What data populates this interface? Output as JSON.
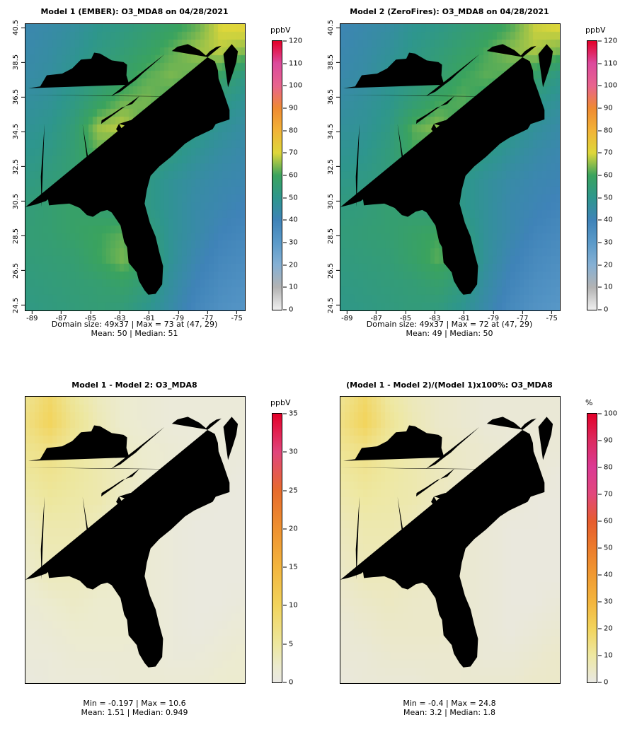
{
  "figure": {
    "background": "#ffffff"
  },
  "chart_data": [
    {
      "type": "heatmap",
      "title": "Model 1 (EMBER): O3_MDA8 on 04/28/2021",
      "units": "ppbV",
      "domain_size": "49x37",
      "native_grid": [
        49,
        37
      ],
      "caption_line1": "Domain size: 49x37 | Max = 73 at (47, 29)",
      "caption_line2": "Mean: 50 |  Median: 51",
      "stats": {
        "mean": 50,
        "median": 51,
        "max": 73,
        "max_at": [
          47,
          29
        ]
      },
      "axis": {
        "lon_range": [
          -89.5,
          -74.5
        ],
        "lat_range": [
          24.25,
          40.75
        ],
        "lon_ticks": [
          -89,
          -87,
          -85,
          -83,
          -81,
          -79,
          -77,
          -75
        ],
        "lat_ticks": [
          24.5,
          26.5,
          28.5,
          30.5,
          32.5,
          34.5,
          36.5,
          38.5,
          40.5
        ]
      },
      "colorbar": {
        "min": 0,
        "max": 120,
        "ticks": [
          0,
          10,
          20,
          30,
          40,
          50,
          60,
          70,
          80,
          90,
          100,
          110,
          120
        ],
        "stops": [
          [
            0,
            "#efefef"
          ],
          [
            10,
            "#b3b3b3"
          ],
          [
            20,
            "#85b0d4"
          ],
          [
            30,
            "#5b9ac9"
          ],
          [
            40,
            "#3f83b8"
          ],
          [
            50,
            "#2e968d"
          ],
          [
            60,
            "#3aa35e"
          ],
          [
            70,
            "#ded73a"
          ],
          [
            80,
            "#f2b337"
          ],
          [
            90,
            "#ef8a32"
          ],
          [
            100,
            "#e8648e"
          ],
          [
            110,
            "#dc4a9d"
          ],
          [
            120,
            "#e40028"
          ]
        ]
      },
      "grid": [
        [
          42,
          44,
          46,
          50,
          52,
          55,
          58,
          62,
          70,
          72
        ],
        [
          43,
          45,
          48,
          52,
          55,
          58,
          62,
          66,
          68,
          65
        ],
        [
          44,
          46,
          50,
          54,
          58,
          62,
          64,
          62,
          58,
          52
        ],
        [
          46,
          48,
          52,
          58,
          63,
          64,
          60,
          56,
          52,
          48
        ],
        [
          48,
          50,
          55,
          66,
          68,
          60,
          56,
          52,
          48,
          45
        ],
        [
          50,
          52,
          56,
          62,
          60,
          56,
          52,
          48,
          45,
          43
        ],
        [
          52,
          54,
          56,
          58,
          56,
          52,
          48,
          45,
          43,
          42
        ],
        [
          54,
          56,
          58,
          56,
          54,
          52,
          48,
          44,
          42,
          40
        ],
        [
          55,
          56,
          58,
          60,
          62,
          55,
          48,
          44,
          40,
          38
        ],
        [
          54,
          55,
          56,
          60,
          64,
          58,
          48,
          42,
          38,
          36
        ],
        [
          53,
          54,
          55,
          56,
          58,
          54,
          46,
          40,
          36,
          34
        ],
        [
          52,
          53,
          54,
          55,
          54,
          50,
          44,
          38,
          34,
          32
        ]
      ]
    },
    {
      "type": "heatmap",
      "title": "Model 2 (ZeroFires): O3_MDA8 on 04/28/2021",
      "units": "ppbV",
      "domain_size": "49x37",
      "native_grid": [
        49,
        37
      ],
      "caption_line1": "Domain size: 49x37 | Max = 72 at (47, 29)",
      "caption_line2": "Mean: 49 |  Median: 50",
      "stats": {
        "mean": 49,
        "median": 50,
        "max": 72,
        "max_at": [
          47,
          29
        ]
      },
      "axis": {
        "lon_range": [
          -89.5,
          -74.5
        ],
        "lat_range": [
          24.25,
          40.75
        ],
        "lon_ticks": [
          -89,
          -87,
          -85,
          -83,
          -81,
          -79,
          -77,
          -75
        ],
        "lat_ticks": [
          24.5,
          26.5,
          28.5,
          30.5,
          32.5,
          34.5,
          36.5,
          38.5,
          40.5
        ]
      },
      "colorbar": {
        "min": 0,
        "max": 120,
        "ticks": [
          0,
          10,
          20,
          30,
          40,
          50,
          60,
          70,
          80,
          90,
          100,
          110,
          120
        ],
        "stops": [
          [
            0,
            "#efefef"
          ],
          [
            10,
            "#b3b3b3"
          ],
          [
            20,
            "#85b0d4"
          ],
          [
            30,
            "#5b9ac9"
          ],
          [
            40,
            "#3f83b8"
          ],
          [
            50,
            "#2e968d"
          ],
          [
            60,
            "#3aa35e"
          ],
          [
            70,
            "#ded73a"
          ],
          [
            80,
            "#f2b337"
          ],
          [
            90,
            "#ef8a32"
          ],
          [
            100,
            "#e8648e"
          ],
          [
            110,
            "#dc4a9d"
          ],
          [
            120,
            "#e40028"
          ]
        ]
      },
      "grid": [
        [
          41,
          43,
          45,
          49,
          51,
          54,
          57,
          61,
          69,
          71
        ],
        [
          42,
          44,
          47,
          51,
          54,
          57,
          61,
          65,
          67,
          64
        ],
        [
          43,
          45,
          49,
          52,
          56,
          60,
          62,
          61,
          57,
          51
        ],
        [
          45,
          47,
          50,
          55,
          60,
          62,
          58,
          55,
          51,
          47
        ],
        [
          47,
          48,
          52,
          62,
          65,
          58,
          55,
          51,
          47,
          44
        ],
        [
          49,
          50,
          54,
          60,
          58,
          55,
          51,
          47,
          44,
          42
        ],
        [
          51,
          52,
          54,
          56,
          55,
          51,
          47,
          44,
          42,
          41
        ],
        [
          53,
          54,
          56,
          55,
          53,
          51,
          47,
          43,
          41,
          39
        ],
        [
          54,
          55,
          56,
          58,
          60,
          54,
          47,
          43,
          39,
          37
        ],
        [
          53,
          54,
          55,
          58,
          62,
          57,
          47,
          41,
          37,
          35
        ],
        [
          52,
          53,
          54,
          55,
          57,
          53,
          45,
          39,
          35,
          33
        ],
        [
          51,
          52,
          53,
          54,
          53,
          49,
          43,
          37,
          33,
          31
        ]
      ]
    },
    {
      "type": "heatmap",
      "title": "Model 1 - Model 2: O3_MDA8",
      "units": "ppbV",
      "native_grid": [
        49,
        37
      ],
      "caption_line1": "Min = -0.197 | Max = 10.6",
      "caption_line2": "Mean: 1.51 |  Median: 0.949",
      "stats": {
        "min": -0.197,
        "max": 10.6,
        "mean": 1.51,
        "median": 0.949
      },
      "colorbar": {
        "min": 0,
        "max": 35,
        "ticks": [
          0,
          5,
          10,
          15,
          20,
          25,
          30,
          35
        ],
        "stops": [
          [
            0,
            "#e9e8e3"
          ],
          [
            2,
            "#ecebcf"
          ],
          [
            5,
            "#ede79e"
          ],
          [
            10,
            "#f2d45c"
          ],
          [
            15,
            "#f3b53e"
          ],
          [
            20,
            "#ee9130"
          ],
          [
            25,
            "#e76b2c"
          ],
          [
            30,
            "#e0457c"
          ],
          [
            35,
            "#e30029"
          ]
        ]
      },
      "grid": [
        [
          6,
          9,
          5,
          3,
          2,
          1.5,
          1,
          1,
          1,
          1
        ],
        [
          7,
          10,
          6,
          3.5,
          2,
          1.5,
          1,
          1,
          1,
          1
        ],
        [
          6,
          7,
          5,
          4,
          2.5,
          2,
          1.5,
          1,
          1,
          1
        ],
        [
          5,
          6,
          5,
          4,
          3,
          2,
          1.5,
          1,
          1,
          0.5
        ],
        [
          4,
          5,
          4.5,
          4,
          2.5,
          2,
          1.5,
          1,
          0.5,
          0.5
        ],
        [
          3,
          4,
          4,
          3,
          2,
          1.5,
          1,
          0.5,
          0.5,
          0.5
        ],
        [
          2.5,
          3.5,
          3.5,
          2.5,
          2,
          1.5,
          1,
          0.5,
          0.5,
          0.5
        ],
        [
          2,
          3,
          3,
          2.5,
          2,
          1.5,
          1,
          0.5,
          0.5,
          0.5
        ],
        [
          1.5,
          2,
          2.5,
          2,
          2,
          1.5,
          1,
          0.5,
          0.5,
          1
        ],
        [
          1,
          1.5,
          2,
          2,
          2,
          1.5,
          1,
          0.5,
          1,
          1.5
        ],
        [
          1,
          1,
          1.5,
          1.5,
          1.5,
          1.5,
          1,
          1,
          1.5,
          2
        ],
        [
          0.5,
          1,
          1,
          1,
          1.5,
          1.5,
          1.5,
          1.5,
          2,
          2
        ]
      ]
    },
    {
      "type": "heatmap",
      "title": "(Model 1 - Model 2)/(Model 1)x100%: O3_MDA8",
      "units": "%",
      "native_grid": [
        49,
        37
      ],
      "caption_line1": "Min = -0.4 | Max = 24.8",
      "caption_line2": "Mean: 3.2 |  Median: 1.8",
      "stats": {
        "min": -0.4,
        "max": 24.8,
        "mean": 3.2,
        "median": 1.8
      },
      "colorbar": {
        "min": 0,
        "max": 100,
        "ticks": [
          0,
          10,
          20,
          30,
          40,
          50,
          60,
          70,
          80,
          90,
          100
        ],
        "stops": [
          [
            0,
            "#e9e8e3"
          ],
          [
            10,
            "#eee8a2"
          ],
          [
            20,
            "#f2d45c"
          ],
          [
            30,
            "#f3b53e"
          ],
          [
            40,
            "#f09a32"
          ],
          [
            50,
            "#ec7c2c"
          ],
          [
            60,
            "#e65c2e"
          ],
          [
            70,
            "#e2487c"
          ],
          [
            80,
            "#db3a94"
          ],
          [
            90,
            "#dc2b60"
          ],
          [
            100,
            "#e30029"
          ]
        ]
      },
      "grid": [
        [
          12,
          18,
          10,
          6,
          4,
          3,
          2,
          2,
          2,
          2
        ],
        [
          14,
          20,
          12,
          7,
          4,
          3,
          2,
          2,
          2,
          2
        ],
        [
          12,
          14,
          10,
          8,
          5,
          4,
          3,
          2,
          2,
          2
        ],
        [
          10,
          12,
          10,
          8,
          6,
          4,
          3,
          2,
          2,
          1
        ],
        [
          8,
          10,
          9,
          8,
          5,
          4,
          3,
          2,
          1,
          1
        ],
        [
          6,
          8,
          8,
          6,
          4,
          3,
          2,
          1,
          1,
          1
        ],
        [
          5,
          7,
          7,
          5,
          4,
          3,
          2,
          1,
          1,
          1
        ],
        [
          4,
          6,
          6,
          5,
          4,
          3,
          2,
          1,
          1,
          1
        ],
        [
          3,
          4,
          5,
          4,
          4,
          3,
          2,
          1,
          1,
          2
        ],
        [
          2,
          3,
          4,
          4,
          4,
          3,
          2,
          1,
          2,
          3
        ],
        [
          2,
          2,
          3,
          3,
          3,
          3,
          2,
          2,
          3,
          4
        ],
        [
          1,
          2,
          2,
          2,
          3,
          3,
          3,
          3,
          4,
          4
        ]
      ]
    }
  ]
}
